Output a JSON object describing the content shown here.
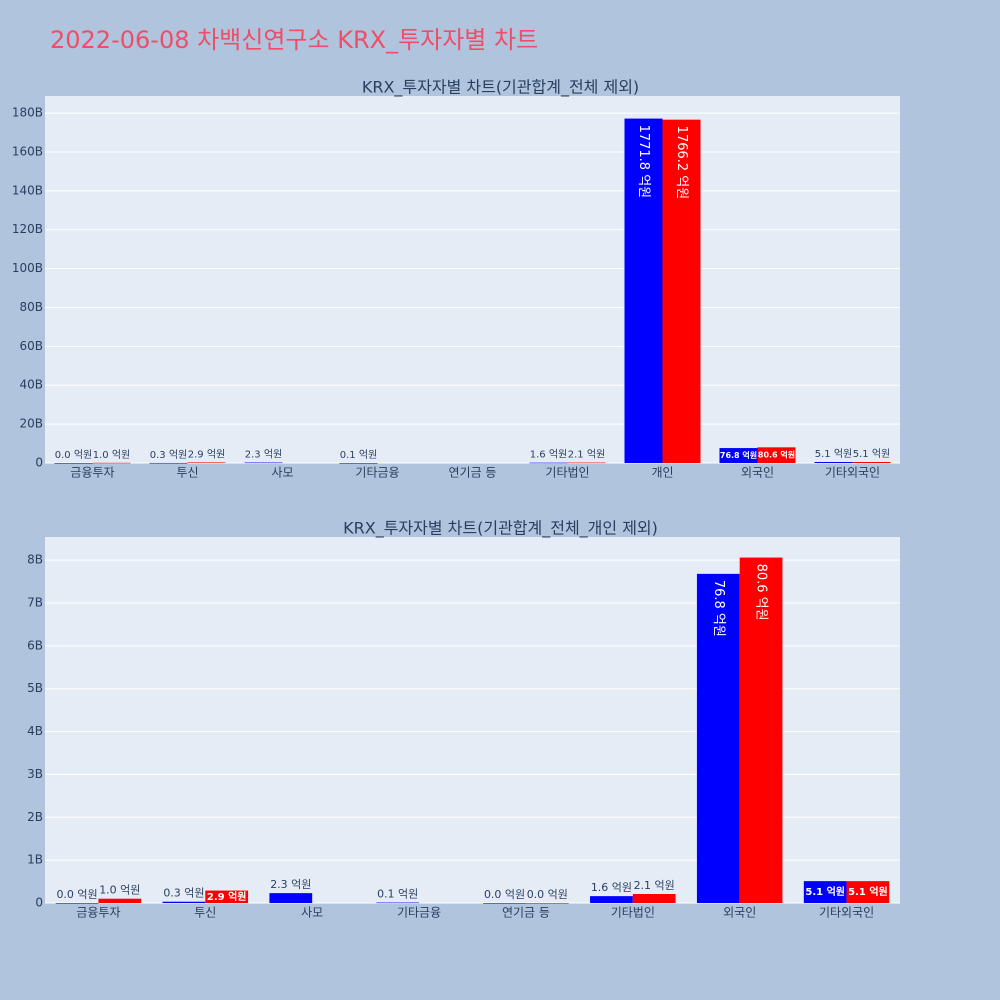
{
  "title": "2022-06-08 차백신연구소 KRX_투자자별 차트",
  "chart_data": [
    {
      "type": "bar",
      "title": "KRX_투자자별 차트(기관합계_전체 제외)",
      "categories": [
        "금융투자",
        "투신",
        "사모",
        "기타금융",
        "연기금 등",
        "기타법인",
        "개인",
        "외국인",
        "기타외국인"
      ],
      "series": [
        {
          "color": "#0000ff",
          "values": [
            0,
            30000000,
            230000000,
            10000000,
            null,
            160000000,
            177180000000,
            7680000000,
            510000000
          ],
          "value_labels": [
            "0.0 억원",
            "0.3 억원",
            "2.3 억원",
            "0.1 억원",
            null,
            "1.6 억원",
            "1771.8 억원",
            "76.8 억원",
            "5.1 억원"
          ]
        },
        {
          "color": "#ff0000",
          "values": [
            100000000,
            290000000,
            null,
            null,
            null,
            210000000,
            176620000000,
            8060000000,
            510000000
          ],
          "value_labels": [
            "1.0 억원",
            "2.9 억원",
            null,
            null,
            null,
            "2.1 억원",
            "1766.2 억원",
            "80.6 억원",
            "5.1 억원"
          ]
        }
      ],
      "ylim": [
        0,
        188800000000
      ],
      "yticks": [
        0,
        {
          "value": 20000000000,
          "label": "20B"
        },
        {
          "value": 40000000000,
          "label": "40B"
        },
        {
          "value": 60000000000,
          "label": "60B"
        },
        {
          "value": 80000000000,
          "label": "80B"
        },
        {
          "value": 100000000000,
          "label": "100B"
        },
        {
          "value": 120000000000,
          "label": "120B"
        },
        {
          "value": 140000000000,
          "label": "140B"
        },
        {
          "value": 160000000000,
          "label": "160B"
        },
        {
          "value": 180000000000,
          "label": "180B"
        }
      ],
      "grid": true
    },
    {
      "type": "bar",
      "title": "KRX_투자자별 차트(기관합계_전체_개인 제외)",
      "categories": [
        "금융투자",
        "투신",
        "사모",
        "기타금융",
        "연기금 등",
        "기타법인",
        "외국인",
        "기타외국인"
      ],
      "series": [
        {
          "color": "#0000ff",
          "values": [
            0,
            30000000,
            230000000,
            10000000,
            0,
            160000000,
            7680000000,
            510000000
          ],
          "value_labels": [
            "0.0 억원",
            "0.3 억원",
            "2.3 억원",
            "0.1 억원",
            "0.0 억원",
            "1.6 억원",
            "76.8 억원",
            "5.1 억원"
          ]
        },
        {
          "color": "#ff0000",
          "values": [
            100000000,
            290000000,
            null,
            null,
            0,
            210000000,
            8060000000,
            510000000
          ],
          "value_labels": [
            "1.0 억원",
            "2.9 억원",
            null,
            null,
            "0.0 억원",
            "2.1 억원",
            "80.6 억원",
            "5.1 억원"
          ]
        }
      ],
      "ylim": [
        0,
        8540000000
      ],
      "yticks": [
        0,
        {
          "value": 1000000000,
          "label": "1B"
        },
        {
          "value": 2000000000,
          "label": "2B"
        },
        {
          "value": 3000000000,
          "label": "3B"
        },
        {
          "value": 4000000000,
          "label": "4B"
        },
        {
          "value": 5000000000,
          "label": "5B"
        },
        {
          "value": 6000000000,
          "label": "6B"
        },
        {
          "value": 7000000000,
          "label": "7B"
        },
        {
          "value": 8000000000,
          "label": "8B"
        }
      ],
      "grid": true
    }
  ]
}
